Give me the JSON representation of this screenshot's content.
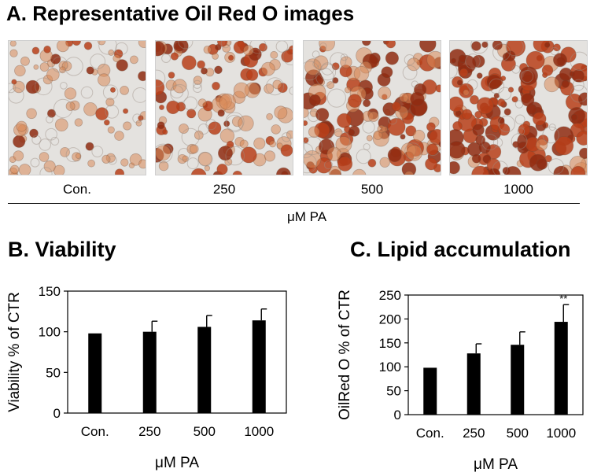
{
  "panel_a": {
    "title": "A. Representative Oil Red O images",
    "images": [
      {
        "label": "Con.",
        "stain_level": 0.25
      },
      {
        "label": "250",
        "stain_level": 0.55
      },
      {
        "label": "500",
        "stain_level": 0.7
      },
      {
        "label": "1000",
        "stain_level": 0.9
      }
    ],
    "xlabel": "μM PA"
  },
  "panel_b": {
    "title": "B. Viability"
  },
  "panel_c": {
    "title": "C. Lipid accumulation"
  },
  "colors": {
    "bar": "#000000",
    "stain": "#c8501e",
    "background": "#ffffff"
  },
  "chart_data": [
    {
      "type": "bar",
      "title": "B. Viability",
      "categories": [
        "Con.",
        "250",
        "500",
        "1000"
      ],
      "values": [
        98,
        100,
        106,
        114
      ],
      "errors": [
        0,
        13,
        14,
        14
      ],
      "xlabel": "μM PA",
      "ylabel": "Viability % of CTR",
      "ylim": [
        0,
        150
      ],
      "yticks": [
        0,
        50,
        100,
        150
      ],
      "annotations": [
        "",
        "",
        "",
        ""
      ],
      "grid": false
    },
    {
      "type": "bar",
      "title": "C. Lipid accumulation",
      "categories": [
        "Con.",
        "250",
        "500",
        "1000"
      ],
      "values": [
        98,
        128,
        146,
        194
      ],
      "errors": [
        0,
        20,
        27,
        36
      ],
      "xlabel": "μM PA",
      "ylabel": "OilRed O % of CTR",
      "ylim": [
        0,
        250
      ],
      "yticks": [
        0,
        50,
        100,
        150,
        200,
        250
      ],
      "annotations": [
        "",
        "",
        "",
        "**"
      ],
      "grid": false
    }
  ]
}
